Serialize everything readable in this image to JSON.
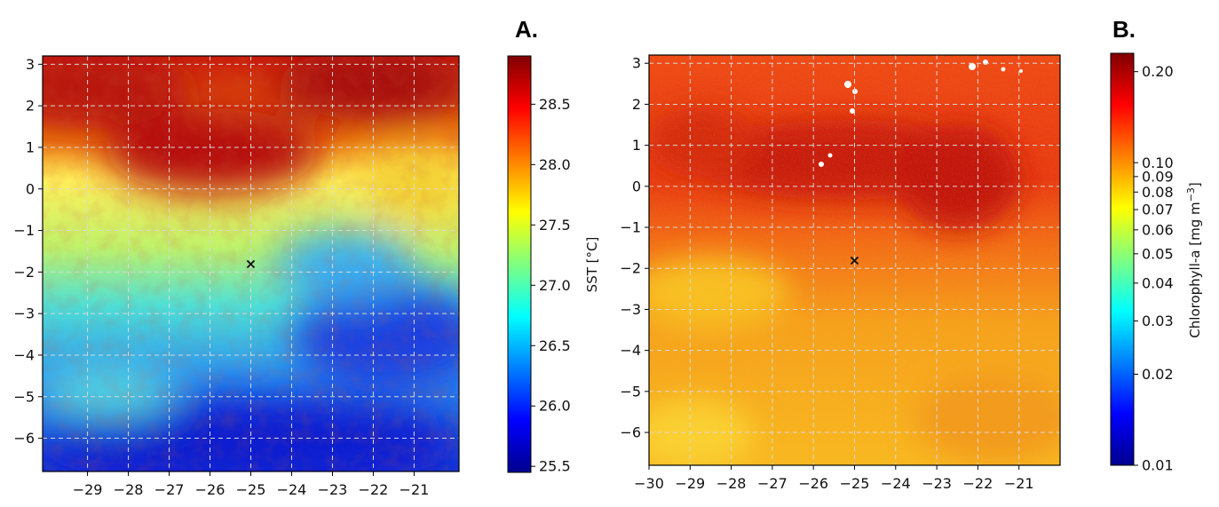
{
  "chart_data": [
    {
      "type": "heatmap",
      "panel_label": "A.",
      "xlabel": "",
      "ylabel": "",
      "x_ticks": [
        -29,
        -28,
        -27,
        -26,
        -25,
        -24,
        -23,
        -22,
        -21
      ],
      "y_ticks": [
        3,
        2,
        1,
        0,
        -1,
        -2,
        -3,
        -4,
        -5,
        -6
      ],
      "xlim": [
        -30.1,
        -19.9
      ],
      "ylim": [
        -6.8,
        3.2
      ],
      "grid": true,
      "marker": {
        "x": -25,
        "y": -1.8,
        "symbol": "×"
      },
      "colormap": "jet",
      "colorbar": {
        "label": "SST [°C]",
        "scale": "linear",
        "range": [
          25.45,
          28.9
        ],
        "ticks": [
          28.5,
          28.0,
          27.5,
          27.0,
          26.5,
          26.0,
          25.5
        ]
      },
      "field_description": "Warm (28.5 °C+) north of ~0.5°N with a warm bulge centered near -26.5°E; cool (~25.6 °C) in the south-east and south."
    },
    {
      "type": "heatmap",
      "panel_label": "B.",
      "xlabel": "",
      "ylabel": "",
      "x_ticks": [
        -30,
        -29,
        -28,
        -27,
        -26,
        -25,
        -24,
        -23,
        -22,
        -21
      ],
      "y_ticks": [
        3,
        2,
        1,
        0,
        -1,
        -2,
        -3,
        -4,
        -5,
        -6
      ],
      "xlim": [
        -30.0,
        -20.0
      ],
      "ylim": [
        -6.8,
        3.2
      ],
      "grid": true,
      "marker": {
        "x": -25,
        "y": -1.8,
        "symbol": "×"
      },
      "colormap": "jet",
      "colorbar": {
        "label": "Chlorophyll-a [mg m",
        "label_sup": "−3",
        "label_end": "]",
        "scale": "log",
        "range": [
          0.01,
          0.23
        ],
        "ticks": [
          0.2,
          0.1,
          0.09,
          0.08,
          0.07,
          0.06,
          0.05,
          0.04,
          0.03,
          0.02,
          0.01
        ],
        "tick_labels": [
          "0.20",
          "0.10",
          "0.09",
          "0.08",
          "0.07",
          "0.06",
          "0.05",
          "0.04",
          "0.03",
          "0.02",
          "0.01"
        ]
      },
      "field_description": "Mostly 0.10–0.20 mg m^-3 (orange/red), highest in a band near 0–1°N extending to -22°E; lower (~0.09) in the south-west."
    }
  ],
  "colors": {
    "frame": "#000000",
    "grid": "#d9d9d9",
    "background": "#ffffff"
  }
}
